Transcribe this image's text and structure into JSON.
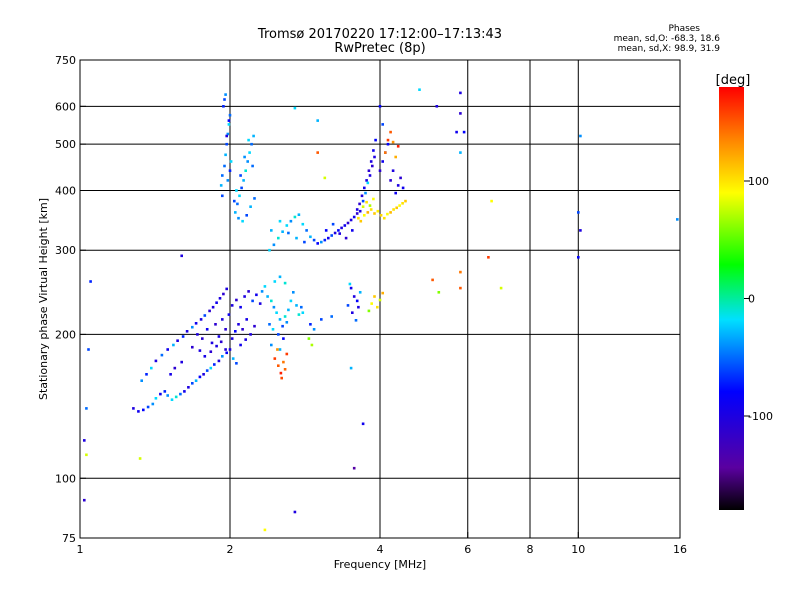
{
  "title_line1": "Tromsø 20170220 17:12:00–17:13:43",
  "title_line2": "RwPretec (8p)",
  "phases": {
    "heading": "Phases",
    "line_o": "mean, sd,O: -68.3, 18.6",
    "line_x": "mean, sd,X:  98.9, 31.9"
  },
  "colorbar": {
    "label": "[deg]",
    "ticks": [
      "100",
      "0",
      "-100"
    ],
    "tick_values": [
      100,
      0,
      -100
    ],
    "range": [
      -180,
      180
    ]
  },
  "chart_data": {
    "type": "scatter",
    "title": "Tromsø 20170220 17:12:00–17:13:43",
    "subtitle": "RwPretec (8p)",
    "xlabel": "Frequency [MHz]",
    "ylabel": "Stationary phase Virtual Height [km]",
    "x_scale": "log",
    "y_scale": "log",
    "xlim": [
      1,
      16
    ],
    "ylim": [
      75,
      750
    ],
    "x_ticks": [
      1,
      2,
      4,
      6,
      8,
      10,
      16
    ],
    "x_tick_labels": [
      "1",
      "2",
      "4",
      "6",
      "8",
      "10",
      "16"
    ],
    "y_ticks": [
      75,
      100,
      200,
      300,
      400,
      500,
      600,
      750
    ],
    "y_tick_labels": [
      "75",
      "100",
      "200",
      "300",
      "400",
      "500",
      "600",
      "750"
    ],
    "grid": true,
    "color_scale": "rainbow, -180 (black) to 180 (red) deg",
    "points": [
      [
        1.28,
        140,
        -100
      ],
      [
        1.31,
        138,
        -90
      ],
      [
        1.34,
        139,
        -80
      ],
      [
        1.37,
        141,
        -60
      ],
      [
        1.4,
        143,
        -40
      ],
      [
        1.42,
        147,
        -20
      ],
      [
        1.45,
        150,
        -90
      ],
      [
        1.48,
        152,
        -70
      ],
      [
        1.5,
        149,
        -40
      ],
      [
        1.53,
        146,
        -20
      ],
      [
        1.56,
        148,
        -10
      ],
      [
        1.59,
        150,
        -50
      ],
      [
        1.62,
        152,
        -90
      ],
      [
        1.65,
        155,
        -100
      ],
      [
        1.68,
        158,
        -60
      ],
      [
        1.71,
        160,
        -30
      ],
      [
        1.74,
        163,
        -80
      ],
      [
        1.77,
        165,
        -100
      ],
      [
        1.8,
        168,
        -60
      ],
      [
        1.83,
        170,
        -20
      ],
      [
        1.86,
        173,
        -70
      ],
      [
        1.9,
        176,
        -100
      ],
      [
        1.93,
        180,
        -40
      ],
      [
        1.97,
        183,
        -80
      ],
      [
        2.0,
        186,
        -100
      ],
      [
        2.03,
        178,
        -30
      ],
      [
        2.06,
        174,
        -60
      ],
      [
        1.33,
        160,
        -40
      ],
      [
        1.36,
        165,
        -70
      ],
      [
        1.39,
        170,
        -20
      ],
      [
        1.42,
        176,
        -100
      ],
      [
        1.46,
        181,
        -50
      ],
      [
        1.5,
        186,
        -90
      ],
      [
        1.54,
        190,
        -30
      ],
      [
        1.57,
        194,
        -100
      ],
      [
        1.61,
        198,
        -70
      ],
      [
        1.64,
        203,
        -100
      ],
      [
        1.68,
        207,
        -40
      ],
      [
        1.71,
        211,
        -90
      ],
      [
        1.75,
        215,
        -100
      ],
      [
        1.78,
        219,
        -60
      ],
      [
        1.82,
        224,
        -110
      ],
      [
        1.85,
        228,
        -100
      ],
      [
        1.88,
        233,
        -90
      ],
      [
        1.91,
        238,
        -100
      ],
      [
        1.94,
        243,
        -110
      ],
      [
        1.97,
        249,
        -100
      ],
      [
        1.72,
        200,
        -100
      ],
      [
        1.76,
        196,
        -110
      ],
      [
        1.8,
        205,
        -90
      ],
      [
        1.84,
        192,
        -100
      ],
      [
        1.87,
        210,
        -110
      ],
      [
        1.9,
        198,
        -95
      ],
      [
        1.93,
        215,
        -100
      ],
      [
        1.96,
        205,
        -110
      ],
      [
        1.99,
        220,
        -90
      ],
      [
        1.68,
        188,
        -110
      ],
      [
        1.74,
        185,
        -100
      ],
      [
        1.78,
        180,
        -95
      ],
      [
        1.83,
        184,
        -110
      ],
      [
        1.88,
        189,
        -100
      ],
      [
        1.92,
        193,
        -110
      ],
      [
        1.96,
        186,
        -105
      ],
      [
        1.6,
        175,
        -100
      ],
      [
        1.55,
        170,
        -110
      ],
      [
        1.52,
        165,
        -95
      ],
      [
        2.02,
        230,
        -100
      ],
      [
        2.06,
        236,
        -110
      ],
      [
        2.1,
        228,
        -90
      ],
      [
        2.14,
        240,
        -100
      ],
      [
        2.18,
        246,
        -110
      ],
      [
        2.22,
        235,
        -60
      ],
      [
        2.26,
        242,
        -90
      ],
      [
        2.3,
        232,
        -100
      ],
      [
        2.08,
        210,
        -100
      ],
      [
        2.12,
        205,
        -110
      ],
      [
        2.16,
        215,
        -95
      ],
      [
        2.2,
        200,
        -100
      ],
      [
        2.24,
        208,
        -110
      ],
      [
        2.1,
        190,
        -90
      ],
      [
        2.15,
        195,
        -100
      ],
      [
        2.02,
        196,
        -100
      ],
      [
        2.05,
        203,
        -80
      ],
      [
        2.32,
        246,
        -40
      ],
      [
        2.35,
        252,
        -20
      ],
      [
        2.38,
        240,
        -30
      ],
      [
        2.42,
        235,
        -10
      ],
      [
        2.45,
        228,
        -40
      ],
      [
        2.48,
        222,
        -20
      ],
      [
        2.52,
        215,
        -30
      ],
      [
        2.55,
        208,
        -60
      ],
      [
        2.58,
        218,
        -10
      ],
      [
        2.62,
        225,
        -30
      ],
      [
        2.65,
        235,
        -20
      ],
      [
        2.68,
        245,
        -40
      ],
      [
        2.4,
        210,
        -50
      ],
      [
        2.44,
        205,
        -20
      ],
      [
        2.5,
        200,
        -60
      ],
      [
        2.56,
        196,
        -80
      ],
      [
        2.6,
        212,
        -40
      ],
      [
        2.46,
        258,
        -20
      ],
      [
        2.52,
        264,
        -30
      ],
      [
        2.58,
        256,
        -10
      ],
      [
        2.72,
        230,
        -30
      ],
      [
        2.75,
        220,
        -10
      ],
      [
        2.78,
        228,
        -50
      ],
      [
        2.8,
        222,
        -20
      ],
      [
        2.42,
        190,
        -40
      ],
      [
        2.52,
        186,
        -30
      ],
      [
        2.46,
        178,
        160
      ],
      [
        2.5,
        172,
        150
      ],
      [
        2.53,
        166,
        170
      ],
      [
        2.56,
        175,
        140
      ],
      [
        2.6,
        182,
        160
      ],
      [
        2.49,
        186,
        130
      ],
      [
        2.54,
        162,
        155
      ],
      [
        2.58,
        169,
        145
      ],
      [
        1.95,
        450,
        -50
      ],
      [
        1.96,
        475,
        -30
      ],
      [
        1.97,
        500,
        -60
      ],
      [
        1.98,
        525,
        -40
      ],
      [
        1.99,
        550,
        -20
      ],
      [
        2.0,
        575,
        -50
      ],
      [
        1.94,
        600,
        -70
      ],
      [
        1.95,
        620,
        -60
      ],
      [
        1.96,
        635,
        -40
      ],
      [
        1.93,
        430,
        -50
      ],
      [
        1.92,
        410,
        -30
      ],
      [
        1.93,
        390,
        -60
      ],
      [
        1.98,
        420,
        -40
      ],
      [
        2.01,
        460,
        -20
      ],
      [
        2.0,
        440,
        -70
      ],
      [
        1.97,
        520,
        -100
      ],
      [
        1.99,
        560,
        -80
      ],
      [
        2.05,
        360,
        -30
      ],
      [
        2.07,
        375,
        -50
      ],
      [
        2.09,
        390,
        -20
      ],
      [
        2.11,
        405,
        -60
      ],
      [
        2.13,
        420,
        -30
      ],
      [
        2.15,
        440,
        -10
      ],
      [
        2.17,
        460,
        -40
      ],
      [
        2.19,
        480,
        -20
      ],
      [
        2.21,
        500,
        -50
      ],
      [
        2.23,
        520,
        -30
      ],
      [
        2.08,
        350,
        -40
      ],
      [
        2.12,
        345,
        -20
      ],
      [
        2.16,
        355,
        -60
      ],
      [
        2.2,
        370,
        -30
      ],
      [
        2.24,
        385,
        -50
      ],
      [
        2.06,
        400,
        -20
      ],
      [
        2.1,
        430,
        -60
      ],
      [
        2.14,
        470,
        -40
      ],
      [
        2.18,
        510,
        -20
      ],
      [
        2.22,
        450,
        -50
      ],
      [
        2.04,
        380,
        -60
      ],
      [
        2.4,
        300,
        -20
      ],
      [
        2.45,
        308,
        -40
      ],
      [
        2.5,
        318,
        -10
      ],
      [
        2.55,
        328,
        -30
      ],
      [
        2.6,
        338,
        -20
      ],
      [
        2.65,
        345,
        -40
      ],
      [
        2.7,
        352,
        -10
      ],
      [
        2.75,
        356,
        -30
      ],
      [
        2.8,
        340,
        -20
      ],
      [
        2.85,
        330,
        -50
      ],
      [
        2.9,
        320,
        -30
      ],
      [
        2.95,
        315,
        -60
      ],
      [
        3.0,
        310,
        -80
      ],
      [
        3.05,
        312,
        -40
      ],
      [
        3.1,
        315,
        -70
      ],
      [
        3.15,
        318,
        -90
      ],
      [
        3.2,
        322,
        -60
      ],
      [
        3.25,
        326,
        -100
      ],
      [
        3.3,
        330,
        -80
      ],
      [
        3.35,
        334,
        -100
      ],
      [
        3.4,
        338,
        -90
      ],
      [
        3.45,
        342,
        -110
      ],
      [
        3.5,
        347,
        -100
      ],
      [
        3.55,
        352,
        -90
      ],
      [
        3.6,
        358,
        -110
      ],
      [
        3.65,
        362,
        -100
      ],
      [
        2.42,
        330,
        -30
      ],
      [
        2.52,
        345,
        -20
      ],
      [
        2.62,
        326,
        -50
      ],
      [
        2.72,
        318,
        -30
      ],
      [
        2.82,
        312,
        -60
      ],
      [
        3.12,
        330,
        -80
      ],
      [
        3.22,
        340,
        -60
      ],
      [
        3.32,
        325,
        -100
      ],
      [
        3.42,
        318,
        -110
      ],
      [
        3.52,
        330,
        -90
      ],
      [
        3.6,
        365,
        -100
      ],
      [
        3.64,
        375,
        -110
      ],
      [
        3.68,
        390,
        -100
      ],
      [
        3.72,
        405,
        -90
      ],
      [
        3.76,
        420,
        -100
      ],
      [
        3.8,
        440,
        -110
      ],
      [
        3.84,
        460,
        -100
      ],
      [
        3.88,
        485,
        -90
      ],
      [
        3.92,
        510,
        -80
      ],
      [
        3.7,
        380,
        -60
      ],
      [
        3.74,
        395,
        -40
      ],
      [
        3.78,
        415,
        -20
      ],
      [
        3.82,
        430,
        -100
      ],
      [
        3.86,
        450,
        -110
      ],
      [
        3.9,
        470,
        -100
      ],
      [
        4.0,
        440,
        -110
      ],
      [
        4.05,
        460,
        -90
      ],
      [
        4.1,
        480,
        -100
      ],
      [
        4.15,
        500,
        -80
      ],
      [
        4.2,
        420,
        -110
      ],
      [
        4.25,
        440,
        -100
      ],
      [
        4.3,
        395,
        -90
      ],
      [
        4.35,
        410,
        -100
      ],
      [
        4.4,
        425,
        -110
      ],
      [
        4.45,
        405,
        -90
      ],
      [
        3.62,
        350,
        100
      ],
      [
        3.66,
        345,
        110
      ],
      [
        3.72,
        355,
        90
      ],
      [
        3.78,
        360,
        120
      ],
      [
        3.84,
        365,
        100
      ],
      [
        3.9,
        358,
        110
      ],
      [
        3.96,
        362,
        95
      ],
      [
        4.02,
        355,
        105
      ],
      [
        4.08,
        350,
        100
      ],
      [
        4.14,
        357,
        90
      ],
      [
        4.2,
        360,
        115
      ],
      [
        4.26,
        365,
        100
      ],
      [
        4.32,
        368,
        110
      ],
      [
        4.38,
        372,
        90
      ],
      [
        4.44,
        376,
        100
      ],
      [
        4.5,
        380,
        110
      ],
      [
        3.7,
        370,
        80
      ],
      [
        3.76,
        378,
        100
      ],
      [
        3.82,
        372,
        70
      ],
      [
        3.88,
        384,
        90
      ],
      [
        4.1,
        480,
        140
      ],
      [
        4.15,
        510,
        160
      ],
      [
        4.2,
        530,
        150
      ],
      [
        4.25,
        505,
        130
      ],
      [
        4.05,
        550,
        -60
      ],
      [
        4.0,
        600,
        -80
      ],
      [
        4.3,
        470,
        120
      ],
      [
        4.35,
        495,
        170
      ],
      [
        3.5,
        250,
        -90
      ],
      [
        3.55,
        240,
        -100
      ],
      [
        3.6,
        235,
        -80
      ],
      [
        3.65,
        245,
        -30
      ],
      [
        3.45,
        230,
        -60
      ],
      [
        3.52,
        222,
        -100
      ],
      [
        3.58,
        214,
        -50
      ],
      [
        3.62,
        228,
        -100
      ],
      [
        3.48,
        255,
        -20
      ],
      [
        3.85,
        232,
        90
      ],
      [
        3.9,
        240,
        110
      ],
      [
        3.95,
        228,
        100
      ],
      [
        4.0,
        236,
        80
      ],
      [
        3.8,
        224,
        60
      ],
      [
        4.05,
        244,
        120
      ],
      [
        2.9,
        210,
        -70
      ],
      [
        2.95,
        205,
        -40
      ],
      [
        3.05,
        215,
        -60
      ],
      [
        3.2,
        218,
        -50
      ],
      [
        2.88,
        196,
        60
      ],
      [
        2.92,
        190,
        70
      ],
      [
        1.02,
        120,
        -100
      ],
      [
        1.03,
        140,
        -50
      ],
      [
        1.05,
        258,
        -70
      ],
      [
        1.04,
        186,
        -60
      ],
      [
        1.02,
        90,
        -110
      ],
      [
        1.03,
        112,
        80
      ],
      [
        1.32,
        110,
        80
      ],
      [
        1.6,
        292,
        -100
      ],
      [
        3.5,
        170,
        -30
      ],
      [
        3.55,
        105,
        -140
      ],
      [
        3.7,
        130,
        -90
      ],
      [
        4.8,
        650,
        -20
      ],
      [
        5.2,
        600,
        -100
      ],
      [
        5.1,
        260,
        150
      ],
      [
        5.25,
        245,
        60
      ],
      [
        5.8,
        580,
        -110
      ],
      [
        5.9,
        530,
        -80
      ],
      [
        6.7,
        380,
        90
      ],
      [
        6.6,
        290,
        160
      ],
      [
        7.0,
        250,
        80
      ],
      [
        10.1,
        520,
        -40
      ],
      [
        10.0,
        360,
        -60
      ],
      [
        10.1,
        330,
        -100
      ],
      [
        10.0,
        290,
        -80
      ],
      [
        15.8,
        348,
        -40
      ],
      [
        2.35,
        78,
        90
      ],
      [
        2.7,
        85,
        -100
      ],
      [
        2.7,
        595,
        -20
      ],
      [
        3.0,
        560,
        -30
      ],
      [
        3.1,
        425,
        80
      ],
      [
        3.0,
        480,
        150
      ],
      [
        5.8,
        480,
        -30
      ],
      [
        5.7,
        530,
        -90
      ],
      [
        5.8,
        640,
        -100
      ],
      [
        5.8,
        270,
        140
      ],
      [
        5.8,
        250,
        150
      ]
    ]
  }
}
